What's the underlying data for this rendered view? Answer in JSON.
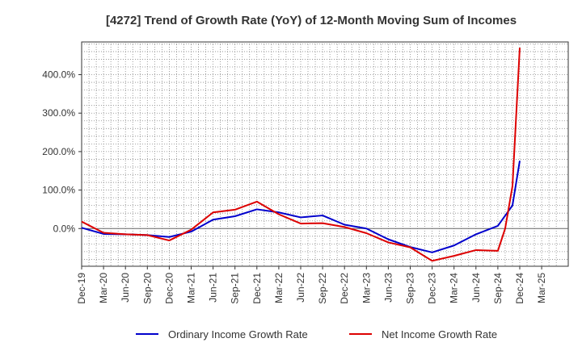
{
  "chart_data": {
    "type": "line",
    "title": "[4272]  Trend of Growth Rate (YoY) of 12-Month Moving Sum of Incomes",
    "xlabel": "",
    "ylabel": "",
    "x_ticks": [
      "Dec-19",
      "Mar-20",
      "Jun-20",
      "Sep-20",
      "Dec-20",
      "Mar-21",
      "Jun-21",
      "Sep-21",
      "Dec-21",
      "Mar-22",
      "Jun-22",
      "Sep-22",
      "Dec-22",
      "Mar-23",
      "Jun-23",
      "Sep-23",
      "Dec-23",
      "Mar-24",
      "Jun-24",
      "Sep-24",
      "Dec-24",
      "Mar-25"
    ],
    "y_ticks": [
      "0.0%",
      "100.0%",
      "200.0%",
      "300.0%",
      "400.0%"
    ],
    "y_tick_values": [
      0,
      100,
      200,
      300,
      400
    ],
    "ylim": [
      -98,
      485
    ],
    "grid": true,
    "legend_position": "bottom",
    "series": [
      {
        "name": "Ordinary Income Growth Rate",
        "color": "#0000cc",
        "points": [
          [
            "Dec-19",
            2
          ],
          [
            "Mar-20",
            -14
          ],
          [
            "Jun-20",
            -15
          ],
          [
            "Sep-20",
            -17
          ],
          [
            "Dec-20",
            -22
          ],
          [
            "Mar-21",
            -8
          ],
          [
            "Jun-21",
            23
          ],
          [
            "Sep-21",
            32
          ],
          [
            "Dec-21",
            50
          ],
          [
            "Mar-22",
            42
          ],
          [
            "Jun-22",
            29
          ],
          [
            "Sep-22",
            34
          ],
          [
            "Dec-22",
            10
          ],
          [
            "Mar-23",
            0
          ],
          [
            "Jun-23",
            -28
          ],
          [
            "Sep-23",
            -48
          ],
          [
            "Dec-23",
            -62
          ],
          [
            "Mar-24",
            -44
          ],
          [
            "Jun-24",
            -15
          ],
          [
            "Sep-24",
            7
          ],
          [
            "Nov-24",
            60
          ],
          [
            "Dec-24",
            176
          ]
        ]
      },
      {
        "name": "Net Income Growth Rate",
        "color": "#dd0000",
        "points": [
          [
            "Dec-19",
            18
          ],
          [
            "Mar-20",
            -11
          ],
          [
            "Jun-20",
            -15
          ],
          [
            "Sep-20",
            -17
          ],
          [
            "Dec-20",
            -31
          ],
          [
            "Mar-21",
            -3
          ],
          [
            "Jun-21",
            42
          ],
          [
            "Sep-21",
            49
          ],
          [
            "Dec-21",
            70
          ],
          [
            "Mar-22",
            37
          ],
          [
            "Jun-22",
            13
          ],
          [
            "Sep-22",
            14
          ],
          [
            "Dec-22",
            4
          ],
          [
            "Mar-23",
            -12
          ],
          [
            "Jun-23",
            -36
          ],
          [
            "Sep-23",
            -49
          ],
          [
            "Dec-23",
            -84
          ],
          [
            "Mar-24",
            -71
          ],
          [
            "Jun-24",
            -56
          ],
          [
            "Sep-24",
            -58
          ],
          [
            "Oct-24",
            0
          ],
          [
            "Nov-24",
            110
          ],
          [
            "Dec-24",
            470
          ]
        ]
      }
    ]
  }
}
